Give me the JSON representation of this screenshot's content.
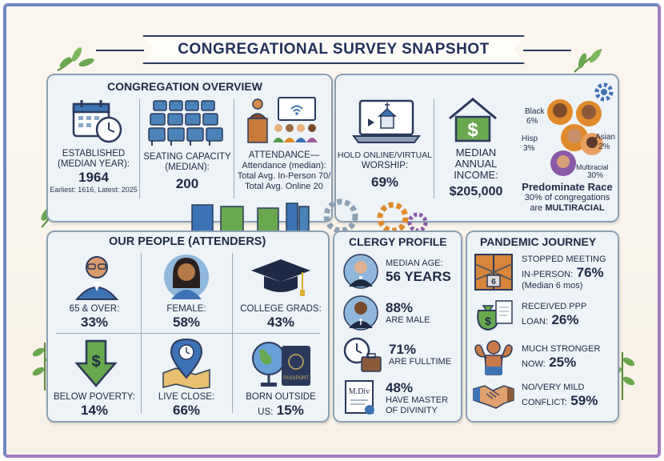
{
  "title": "CONGREGATIONAL SURVEY SNAPSHOT",
  "overview": {
    "title": "CONGREGATION OVERVIEW",
    "established": {
      "label1": "ESTABLISHED",
      "label2": "(MEDIAN YEAR):",
      "value": "1964",
      "range": "Earliest: 1616, Latest: 2025",
      "icon": "calendar-clock-icon"
    },
    "seating": {
      "label1": "SEATING CAPACITY",
      "label2": "(MEDIAN):",
      "value": "200",
      "icon": "pews-icon"
    },
    "attendance": {
      "label1": "ATTENDANCE—",
      "line1": "Attendance (median):",
      "line2": "Total Avg. In-Person 70/",
      "line3": "Total Avg. Online 20",
      "icon": "preacher-audience-icon"
    },
    "online": {
      "label1": "HOLD ONLINE/VIRTUAL",
      "label2": "WORSHIP:",
      "value": "69%",
      "icon": "laptop-church-icon"
    },
    "income": {
      "label1": "MEDIAN",
      "label2": "ANNUAL",
      "label3": "INCOME:",
      "value": "$205,000",
      "icon": "house-dollar-icon"
    },
    "race": {
      "black": "Black",
      "black_pct": "6%",
      "hisp": "Hisp",
      "hisp_pct": "3%",
      "asian": "Asian",
      "asian_pct": "2%",
      "multi": "Multiracial",
      "multi_pct": "30%",
      "head": "Predominate Race",
      "line1": "30% of congregations",
      "line2a": "are",
      "line2b": "MULTIRACIAL",
      "icon": "diverse-people-icon"
    }
  },
  "people": {
    "title": "OUR PEOPLE (ATTENDERS)",
    "items": [
      {
        "label": "65 & OVER:",
        "value": "33%",
        "icon": "elderly-man-icon"
      },
      {
        "label": "FEMALE:",
        "value": "58%",
        "icon": "woman-icon"
      },
      {
        "label": "COLLEGE GRADS:",
        "value": "43%",
        "icon": "graduation-cap-icon"
      },
      {
        "label": "BELOW POVERTY:",
        "value": "14%",
        "icon": "down-arrow-dollar-icon"
      },
      {
        "label": "LIVE CLOSE:",
        "value": "66%",
        "icon": "map-pin-clock-icon"
      },
      {
        "label": "BORN OUTSIDE",
        "label2": "US:",
        "value": "15%",
        "icon": "globe-passport-icon"
      }
    ]
  },
  "clergy": {
    "title": "CLERGY PROFILE",
    "age": {
      "label": "MEDIAN AGE:",
      "value": "56 YEARS",
      "icon": "elderly-pastor-icon"
    },
    "male": {
      "value": "88%",
      "label": "ARE MALE",
      "icon": "male-pastor-icon"
    },
    "fulltime": {
      "value": "71%",
      "label": "ARE FULLTIME",
      "icon": "clock-briefcase-icon"
    },
    "mdiv": {
      "value": "48%",
      "label1": "HAVE MASTER",
      "label2": "OF DIVINITY",
      "badge": "M.Div",
      "icon": "diploma-icon"
    }
  },
  "pandemic": {
    "title": "PANDEMIC JOURNEY",
    "stopped": {
      "label1": "STOPPED MEETING",
      "label2": "IN-PERSON:",
      "value": "76%",
      "sub": "(Median 6 mos)",
      "badge": "6",
      "icon": "locked-door-icon"
    },
    "ppp": {
      "label1": "RECEIVED PPP",
      "label2": "LOAN:",
      "value": "26%",
      "icon": "money-bag-document-icon"
    },
    "stronger": {
      "label1": "MUCH STRONGER",
      "label2": "NOW:",
      "value": "25%",
      "icon": "strong-arm-icon"
    },
    "conflict": {
      "label1": "NO/VERY MILD",
      "label2": "CONFLICT:",
      "value": "59%",
      "icon": "handshake-icon"
    }
  },
  "colors": {
    "navy": "#1e2a44",
    "green": "#4f9a4a",
    "blue": "#3d73b5",
    "orange": "#e08a2a",
    "panel": "#eef3f7"
  }
}
